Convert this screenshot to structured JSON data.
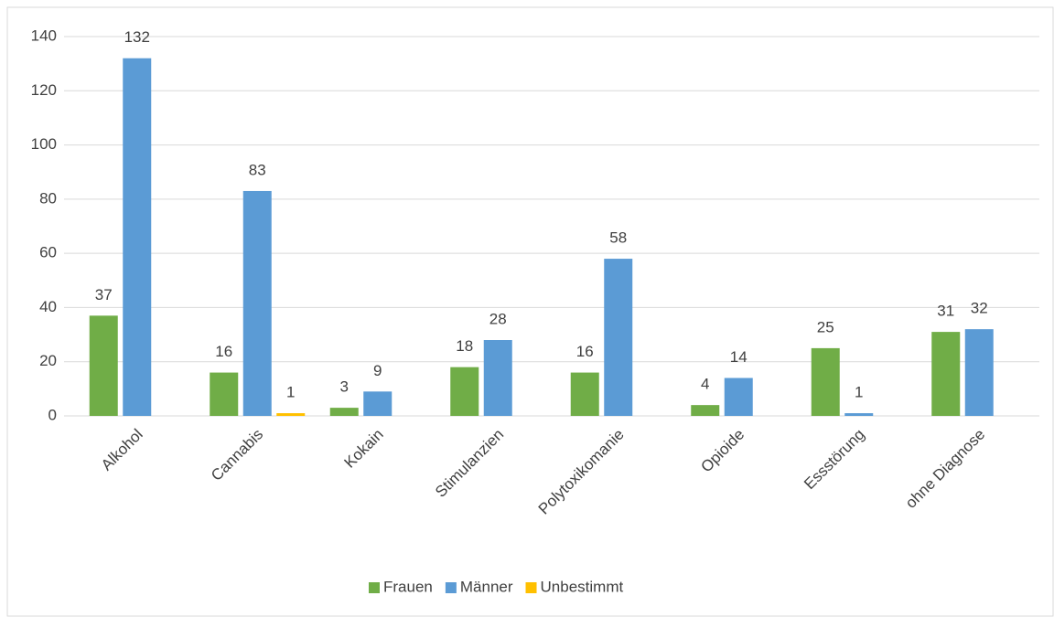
{
  "chart_data": {
    "type": "bar",
    "categories": [
      "Alkohol",
      "Cannabis",
      "Kokain",
      "Stimulanzien",
      "Polytoxikomanie",
      "Opioide",
      "Essstörung",
      "ohne Diagnose"
    ],
    "series": [
      {
        "name": "Frauen",
        "color": "#70ad47",
        "values": [
          37,
          16,
          3,
          18,
          16,
          4,
          25,
          31
        ]
      },
      {
        "name": "Männer",
        "color": "#5b9bd5",
        "values": [
          132,
          83,
          9,
          28,
          58,
          14,
          1,
          32
        ]
      },
      {
        "name": "Unbestimmt",
        "color": "#ffc000",
        "values": [
          null,
          1,
          null,
          null,
          null,
          null,
          null,
          null
        ]
      }
    ],
    "ylim": [
      0,
      140
    ],
    "yticks": [
      0,
      20,
      40,
      60,
      80,
      100,
      120,
      140
    ],
    "grid": true,
    "legend": "bottom"
  }
}
